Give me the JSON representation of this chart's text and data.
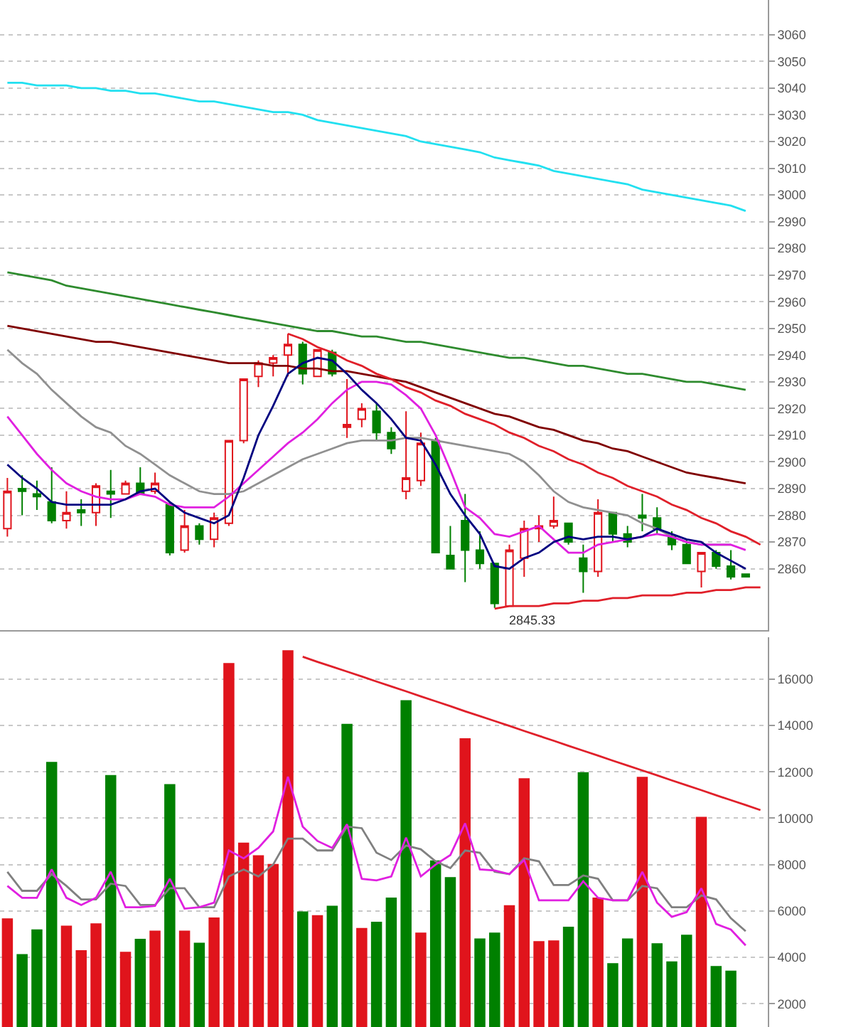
{
  "chart_data": [
    {
      "type": "candlestick",
      "categories": [
        null,
        null,
        null,
        null,
        null,
        null,
        null,
        null,
        null,
        null,
        null,
        null,
        null,
        null,
        null,
        null,
        null,
        null,
        null,
        null,
        null,
        null,
        null,
        null,
        null,
        null,
        null,
        null,
        null,
        null,
        null,
        null,
        null,
        null,
        null,
        null,
        null,
        null,
        null,
        null,
        null,
        null,
        null,
        null,
        null,
        null,
        null,
        null,
        null,
        null,
        null,
        null
      ],
      "ohlc": [
        [
          2875,
          2894,
          2872,
          2889
        ],
        [
          2890,
          2895,
          2880,
          2889
        ],
        [
          2888,
          2893,
          2882,
          2887
        ],
        [
          2885,
          2898,
          2877,
          2878
        ],
        [
          2878,
          2889,
          2875,
          2881
        ],
        [
          2882,
          2886,
          2876,
          2881
        ],
        [
          2881,
          2892,
          2876,
          2891
        ],
        [
          2889,
          2897,
          2879,
          2888
        ],
        [
          2888,
          2893,
          2888,
          2892
        ],
        [
          2892,
          2898,
          2888,
          2888
        ],
        [
          2889,
          2896,
          2888,
          2892
        ],
        [
          2884,
          2885,
          2865,
          2866
        ],
        [
          2867,
          2882,
          2866,
          2876
        ],
        [
          2876,
          2877,
          2869,
          2871
        ],
        [
          2871,
          2881,
          2868,
          2879
        ],
        [
          2877,
          2908,
          2876,
          2908
        ],
        [
          2908,
          2931,
          2907,
          2931
        ],
        [
          2932,
          2938,
          2928,
          2937
        ],
        [
          2937,
          2940,
          2932,
          2939
        ],
        [
          2940,
          2948,
          2932,
          2944
        ],
        [
          2944,
          2945,
          2929,
          2933
        ],
        [
          2932,
          2942,
          2932,
          2942
        ],
        [
          2941,
          2942,
          2932,
          2933
        ],
        [
          2913,
          2931,
          2909,
          2914
        ],
        [
          2916,
          2922,
          2913,
          2920
        ],
        [
          2919,
          2922,
          2908,
          2911
        ],
        [
          2911,
          2913,
          2903,
          2905
        ],
        [
          2889,
          2919,
          2886,
          2894
        ],
        [
          2893,
          2911,
          2891,
          2907
        ],
        [
          2908,
          2909,
          2866,
          2866
        ],
        [
          2865,
          2876,
          2860,
          2860
        ],
        [
          2878,
          2888,
          2855,
          2867
        ],
        [
          2867,
          2874,
          2860,
          2862
        ],
        [
          2862,
          2862,
          2845.33,
          2847
        ],
        [
          2846,
          2869,
          2846,
          2867
        ],
        [
          2864,
          2878,
          2857,
          2875
        ],
        [
          2875,
          2880,
          2870,
          2876
        ],
        [
          2876,
          2887,
          2875,
          2878
        ],
        [
          2877,
          2877,
          2869,
          2870
        ],
        [
          2864,
          2869,
          2851,
          2859
        ],
        [
          2859,
          2886,
          2857,
          2881
        ],
        [
          2881,
          2881,
          2870,
          2873
        ],
        [
          2873,
          2876,
          2868,
          2870
        ],
        [
          2880,
          2888,
          2874,
          2879
        ],
        [
          2879,
          2883,
          2873,
          2875
        ],
        [
          2872,
          2874,
          2867,
          2869
        ],
        [
          2869,
          2871,
          2862,
          2862
        ],
        [
          2859,
          2866,
          2853,
          2866
        ],
        [
          2866,
          2867,
          2860,
          2861
        ],
        [
          2861,
          2867,
          2856,
          2857
        ],
        [
          2858,
          2858,
          2857,
          2857
        ],
        null
      ],
      "colors": [
        "#e0141c",
        "#008000",
        "#008000",
        "#008000",
        "#e0141c",
        "#008000",
        "#e0141c",
        "#008000",
        "#e0141c",
        "#008000",
        "#e0141c",
        "#008000",
        "#e0141c",
        "#008000",
        "#e0141c",
        "#e0141c",
        "#e0141c",
        "#e0141c",
        "#e0141c",
        "#e0141c",
        "#008000",
        "#e0141c",
        "#008000",
        "#e0141c",
        "#e0141c",
        "#008000",
        "#008000",
        "#e0141c",
        "#e0141c",
        "#008000",
        "#008000",
        "#008000",
        "#008000",
        "#008000",
        "#e0141c",
        "#e0141c",
        "#e0141c",
        "#e0141c",
        "#008000",
        "#008000",
        "#e0141c",
        "#008000",
        "#008000",
        "#008000",
        "#008000",
        "#008000",
        "#008000",
        "#e0141c",
        "#008000",
        "#008000",
        "#008000",
        null
      ],
      "series": [
        {
          "type": "line",
          "color": "#22e0f0",
          "values": [
            3042,
            3042,
            3041,
            3041,
            3041,
            3040,
            3040,
            3039,
            3039,
            3038,
            3038,
            3037,
            3036,
            3035,
            3035,
            3034,
            3033,
            3032,
            3031,
            3031,
            3030,
            3028,
            3027,
            3026,
            3025,
            3024,
            3023,
            3022,
            3020,
            3019,
            3018,
            3017,
            3016,
            3014,
            3013,
            3012,
            3011,
            3009,
            3008,
            3007,
            3006,
            3005,
            3004,
            3002,
            3001,
            3000,
            2999,
            2998,
            2997,
            2996,
            2994,
            null
          ]
        },
        {
          "type": "line",
          "color": "#2e8b2e",
          "values": [
            2971,
            2970,
            2969,
            2968,
            2966,
            2965,
            2964,
            2963,
            2962,
            2961,
            2960,
            2959,
            2958,
            2957,
            2956,
            2955,
            2954,
            2953,
            2952,
            2951,
            2950,
            2949,
            2949,
            2948,
            2947,
            2947,
            2946,
            2945,
            2945,
            2944,
            2943,
            2942,
            2941,
            2940,
            2939,
            2939,
            2938,
            2937,
            2936,
            2936,
            2935,
            2934,
            2933,
            2933,
            2932,
            2931,
            2930,
            2930,
            2929,
            2928,
            2927,
            null
          ]
        },
        {
          "type": "line",
          "color": "#800000",
          "values": [
            2951,
            2950,
            2949,
            2948,
            2947,
            2946,
            2945,
            2945,
            2944,
            2943,
            2942,
            2941,
            2940,
            2939,
            2938,
            2937,
            2937,
            2937,
            2936,
            2936,
            2935,
            2935,
            2934,
            2934,
            2933,
            2932,
            2931,
            2930,
            2928,
            2926,
            2924,
            2922,
            2920,
            2918,
            2917,
            2915,
            2913,
            2912,
            2910,
            2908,
            2907,
            2905,
            2904,
            2902,
            2900,
            2898,
            2896,
            2895,
            2894,
            2893,
            2892,
            null
          ]
        },
        {
          "type": "line",
          "color": "#909090",
          "values": [
            2942,
            2937,
            2933,
            2927,
            2922,
            2917,
            2913,
            2911,
            2906,
            2903,
            2899,
            2895,
            2892,
            2889,
            2888,
            2888,
            2889,
            2892,
            2895,
            2898,
            2901,
            2903,
            2905,
            2907,
            2908,
            2908,
            2908,
            2909,
            2909,
            2908,
            2907,
            2906,
            2905,
            2904,
            2903,
            2900,
            2895,
            2889,
            2885,
            2883,
            2882,
            2881,
            2880,
            2877,
            2875,
            2872,
            2870,
            2869,
            2869,
            2869,
            null,
            null
          ]
        },
        {
          "type": "line",
          "color": "#e020e0",
          "values": [
            2917,
            2910,
            2903,
            2897,
            2892,
            2889,
            2887,
            2886,
            2886,
            2888,
            2887,
            2884,
            2883,
            2883,
            2883,
            2887,
            2892,
            2897,
            2902,
            2907,
            2911,
            2916,
            2922,
            2927,
            2930,
            2930,
            2929,
            2925,
            2920,
            2910,
            2897,
            2883,
            2879,
            2873,
            2872,
            2874,
            2876,
            2871,
            2866,
            2866,
            2869,
            2870,
            2871,
            2872,
            2873,
            2872,
            2870,
            2869,
            2869,
            2869,
            2867,
            null
          ]
        },
        {
          "type": "line",
          "color": "#000080",
          "values": [
            2899,
            2894,
            2890,
            2885,
            2884,
            2884,
            2884,
            2884,
            2886,
            2889,
            2890,
            2885,
            2881,
            2879,
            2877,
            2880,
            2894,
            2910,
            2921,
            2933,
            2937,
            2939,
            2938,
            2933,
            2927,
            2922,
            2916,
            2909,
            2908,
            2899,
            2888,
            2880,
            2873,
            2861,
            2860,
            2864,
            2866,
            2870,
            2872,
            2871,
            2872,
            2872,
            2871,
            2872,
            2875,
            2873,
            2871,
            2870,
            2866,
            2863,
            2860,
            null
          ]
        },
        {
          "type": "line",
          "color": "#e0202a",
          "values": [
            null,
            null,
            null,
            null,
            null,
            null,
            null,
            null,
            null,
            null,
            null,
            null,
            null,
            null,
            null,
            null,
            null,
            null,
            null,
            2948,
            2946,
            2943,
            2941,
            2938,
            2936,
            2933,
            2931,
            2928,
            2926,
            2923,
            2921,
            2918,
            2916,
            2914,
            2911,
            2909,
            2906,
            2904,
            2901,
            2899,
            2896,
            2894,
            2891,
            2889,
            2887,
            2884,
            2882,
            2879,
            2877,
            2874,
            2872,
            2869
          ]
        },
        {
          "type": "line",
          "color": "#e0202a",
          "values": [
            null,
            null,
            null,
            null,
            null,
            null,
            null,
            null,
            null,
            null,
            null,
            null,
            null,
            null,
            null,
            null,
            null,
            null,
            null,
            null,
            null,
            null,
            null,
            null,
            null,
            null,
            null,
            null,
            null,
            null,
            null,
            null,
            null,
            2845,
            2846,
            2846,
            2846,
            2847,
            2847,
            2848,
            2848,
            2849,
            2849,
            2850,
            2850,
            2850,
            2851,
            2851,
            2852,
            2852,
            2853,
            2853
          ]
        }
      ],
      "annotations": [
        {
          "text": "2845.33",
          "y": 2845.33
        }
      ],
      "ylim": [
        2837,
        3073
      ],
      "yticks": [
        2860,
        2870,
        2880,
        2890,
        2900,
        2910,
        2920,
        2930,
        2940,
        2950,
        2960,
        2970,
        2980,
        2990,
        3000,
        3010,
        3020,
        3030,
        3040,
        3050,
        3060
      ],
      "grid": "y",
      "tick_labels": "y"
    },
    {
      "type": "bar",
      "categories": [
        null,
        null,
        null,
        null,
        null,
        null,
        null,
        null,
        null,
        null,
        null,
        null,
        null,
        null,
        null,
        null,
        null,
        null,
        null,
        null,
        null,
        null,
        null,
        null,
        null,
        null,
        null,
        null,
        null,
        null,
        null,
        null,
        null,
        null,
        null,
        null,
        null,
        null,
        null,
        null,
        null,
        null,
        null,
        null,
        null,
        null,
        null,
        null,
        null,
        null,
        null,
        null
      ],
      "series": [
        {
          "type": "bar",
          "values": [
            5650,
            4110,
            5180,
            12400,
            5340,
            4280,
            5440,
            11830,
            4210,
            4770,
            5120,
            11440,
            5120,
            4600,
            5690,
            16660,
            8920,
            8370,
            8000,
            17210,
            5950,
            5790,
            6200,
            14040,
            5240,
            5510,
            6550,
            15060,
            5040,
            8150,
            7430,
            13420,
            4790,
            5040,
            6220,
            11690,
            4670,
            4700,
            5290,
            11950,
            6550,
            3720,
            4790,
            11750,
            4580,
            3800,
            4950,
            10030,
            3600,
            3400,
            null,
            null
          ],
          "colors": [
            "#e0141c",
            "#008000",
            "#008000",
            "#008000",
            "#e0141c",
            "#e0141c",
            "#e0141c",
            "#008000",
            "#e0141c",
            "#008000",
            "#e0141c",
            "#008000",
            "#e0141c",
            "#008000",
            "#e0141c",
            "#e0141c",
            "#e0141c",
            "#e0141c",
            "#e0141c",
            "#e0141c",
            "#008000",
            "#e0141c",
            "#008000",
            "#008000",
            "#e0141c",
            "#008000",
            "#008000",
            "#008000",
            "#e0141c",
            "#008000",
            "#008000",
            "#e0141c",
            "#008000",
            "#008000",
            "#e0141c",
            "#e0141c",
            "#e0141c",
            "#e0141c",
            "#008000",
            "#008000",
            "#e0141c",
            "#008000",
            "#008000",
            "#e0141c",
            "#008000",
            "#008000",
            "#008000",
            "#e0141c",
            "#008000",
            "#008000",
            null,
            null
          ]
        },
        {
          "type": "line",
          "color": "#808080",
          "values": [
            7690,
            6870,
            6870,
            7590,
            7080,
            6500,
            6500,
            7180,
            7080,
            6260,
            6260,
            6980,
            6980,
            6160,
            6160,
            7490,
            7790,
            7490,
            8000,
            9120,
            9120,
            8610,
            8610,
            9640,
            9570,
            8510,
            8200,
            8820,
            8660,
            8140,
            7850,
            8610,
            8510,
            7690,
            7590,
            8270,
            8140,
            7120,
            7120,
            7530,
            7390,
            6460,
            6460,
            7080,
            6980,
            6160,
            6160,
            6670,
            6500,
            5690,
            5130,
            null
          ]
        },
        {
          "type": "line",
          "color": "#e020e0",
          "values": [
            7080,
            6570,
            6570,
            7790,
            6570,
            6260,
            6570,
            7690,
            6160,
            6160,
            6220,
            7390,
            6100,
            6160,
            6360,
            8610,
            8270,
            8720,
            9430,
            11790,
            9640,
            9020,
            8720,
            9740,
            7390,
            7320,
            7490,
            9160,
            7490,
            8000,
            8410,
            9780,
            7790,
            7750,
            7590,
            8200,
            6460,
            6460,
            6460,
            7280,
            6570,
            6460,
            6460,
            7690,
            6360,
            5750,
            5950,
            6980,
            5440,
            5200,
            4520,
            null
          ]
        },
        {
          "type": "line",
          "color": "#e0202a",
          "values": [
            null,
            null,
            null,
            null,
            null,
            null,
            null,
            null,
            null,
            null,
            null,
            null,
            null,
            null,
            null,
            null,
            null,
            null,
            null,
            null,
            16960,
            16740,
            16530,
            16320,
            16110,
            15890,
            15680,
            15470,
            15250,
            15040,
            14830,
            14610,
            14400,
            14190,
            13980,
            13760,
            13550,
            13340,
            13120,
            12910,
            12700,
            12480,
            12270,
            12060,
            11850,
            11630,
            11420,
            11210,
            10990,
            10780,
            10570,
            10350
          ]
        }
      ],
      "ylim": [
        1000,
        17800
      ],
      "yticks": [
        2000,
        4000,
        6000,
        8000,
        10000,
        12000,
        14000,
        16000
      ],
      "grid": "y",
      "tick_labels": "y"
    }
  ]
}
